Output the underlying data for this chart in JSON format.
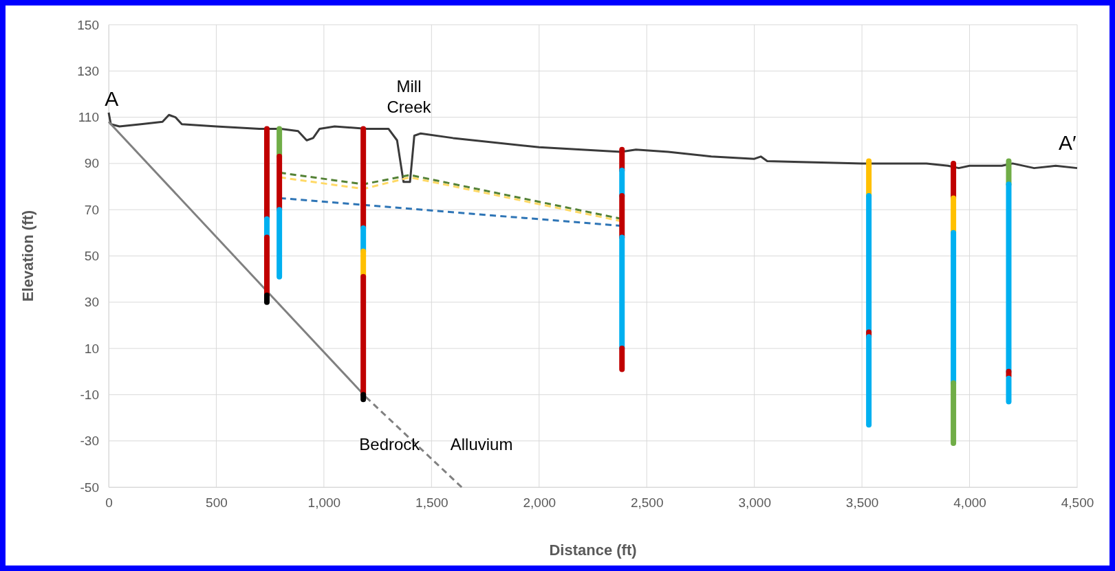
{
  "chart_data": {
    "type": "line",
    "xlabel": "Distance (ft)",
    "ylabel": "Elevation (ft)",
    "xlim": [
      0,
      4500
    ],
    "xticks": [
      {
        "value": 0,
        "label": "0"
      },
      {
        "value": 500,
        "label": "500"
      },
      {
        "value": 1000,
        "label": "1,000"
      },
      {
        "value": 1500,
        "label": "1,500"
      },
      {
        "value": 2000,
        "label": "2,000"
      },
      {
        "value": 2500,
        "label": "2,500"
      },
      {
        "value": 3000,
        "label": "3,000"
      },
      {
        "value": 3500,
        "label": "3,500"
      },
      {
        "value": 4000,
        "label": "4,000"
      },
      {
        "value": 4500,
        "label": "4,500"
      }
    ],
    "ylim": [
      -50,
      150
    ],
    "yticks": [
      -50,
      -30,
      -10,
      10,
      30,
      50,
      70,
      90,
      110,
      130,
      150
    ],
    "grid": true,
    "marker": "none",
    "series": [
      {
        "color": "#3a3a3a",
        "line_style": "solid",
        "x": [
          0,
          10,
          50,
          150,
          250,
          280,
          310,
          340,
          500,
          700,
          800,
          880,
          920,
          950,
          980,
          1050,
          1200,
          1300,
          1340,
          1370,
          1400,
          1420,
          1450,
          1600,
          2000,
          2380,
          2450,
          2600,
          2800,
          3000,
          3030,
          3060,
          3500,
          3800,
          3900,
          3950,
          4000,
          4150,
          4200,
          4300,
          4400,
          4500
        ],
        "values": [
          112,
          107,
          106,
          107,
          108,
          111,
          110,
          107,
          106,
          105,
          105,
          104,
          100,
          101,
          105,
          106,
          105,
          105,
          100,
          82,
          82,
          102,
          103,
          101,
          97,
          95,
          96,
          95,
          93,
          92,
          93,
          91,
          90,
          90,
          89,
          88,
          89,
          89,
          90,
          88,
          89,
          88
        ]
      },
      {
        "color": "#808080",
        "line_style": "solid",
        "x": [
          0,
          1195
        ],
        "values": [
          108,
          -11
        ]
      },
      {
        "color": "#808080",
        "line_style": "dashed",
        "x": [
          1195,
          1640
        ],
        "values": [
          -11,
          -50
        ]
      },
      {
        "color": "#548235",
        "line_style": "dashed",
        "x": [
          795,
          1183,
          1400,
          2385
        ],
        "values": [
          86,
          81,
          85,
          66
        ]
      },
      {
        "color": "#ffd966",
        "line_style": "dashed",
        "x": [
          795,
          1183,
          1400,
          2385
        ],
        "values": [
          84,
          79,
          84,
          65
        ]
      },
      {
        "color": "#2e75b6",
        "line_style": "dashed",
        "x": [
          795,
          2385
        ],
        "values": [
          75,
          63
        ]
      },
      {
        "color": "#c00000",
        "line_style": "solid",
        "x": [
          735,
          735
        ],
        "values": [
          105,
          66
        ]
      },
      {
        "color": "#00b0f0",
        "line_style": "solid",
        "x": [
          735,
          735
        ],
        "values": [
          66,
          58
        ]
      },
      {
        "color": "#c00000",
        "line_style": "solid",
        "x": [
          735,
          735
        ],
        "values": [
          58,
          33
        ]
      },
      {
        "color": "#000000",
        "line_style": "solid",
        "x": [
          735,
          735
        ],
        "values": [
          33,
          30
        ]
      },
      {
        "color": "#70ad47",
        "line_style": "solid",
        "x": [
          793,
          793
        ],
        "values": [
          105,
          93
        ]
      },
      {
        "color": "#c00000",
        "line_style": "solid",
        "x": [
          793,
          793
        ],
        "values": [
          93,
          70
        ]
      },
      {
        "color": "#00b0f0",
        "line_style": "solid",
        "x": [
          793,
          793
        ],
        "values": [
          70,
          41
        ]
      },
      {
        "color": "#c00000",
        "line_style": "solid",
        "x": [
          1183,
          1183
        ],
        "values": [
          105,
          62
        ]
      },
      {
        "color": "#00b0f0",
        "line_style": "solid",
        "x": [
          1183,
          1183
        ],
        "values": [
          62,
          52
        ]
      },
      {
        "color": "#ffc000",
        "line_style": "solid",
        "x": [
          1183,
          1183
        ],
        "values": [
          52,
          41
        ]
      },
      {
        "color": "#c00000",
        "line_style": "solid",
        "x": [
          1183,
          1183
        ],
        "values": [
          41,
          -10
        ]
      },
      {
        "color": "#000000",
        "line_style": "solid",
        "x": [
          1183,
          1183
        ],
        "values": [
          -10,
          -12
        ]
      },
      {
        "color": "#c00000",
        "line_style": "solid",
        "x": [
          2385,
          2385
        ],
        "values": [
          96,
          87
        ]
      },
      {
        "color": "#00b0f0",
        "line_style": "solid",
        "x": [
          2385,
          2385
        ],
        "values": [
          87,
          76
        ]
      },
      {
        "color": "#c00000",
        "line_style": "solid",
        "x": [
          2385,
          2385
        ],
        "values": [
          76,
          58
        ]
      },
      {
        "color": "#00b0f0",
        "line_style": "solid",
        "x": [
          2385,
          2385
        ],
        "values": [
          58,
          10
        ]
      },
      {
        "color": "#c00000",
        "line_style": "solid",
        "x": [
          2385,
          2385
        ],
        "values": [
          10,
          1
        ]
      },
      {
        "color": "#ffc000",
        "line_style": "solid",
        "x": [
          3532,
          3532
        ],
        "values": [
          91,
          76
        ]
      },
      {
        "color": "#00b0f0",
        "line_style": "solid",
        "x": [
          3532,
          3532
        ],
        "values": [
          76,
          17
        ]
      },
      {
        "color": "#c00000",
        "line_style": "solid",
        "x": [
          3532,
          3532
        ],
        "values": [
          17,
          15
        ]
      },
      {
        "color": "#00b0f0",
        "line_style": "solid",
        "x": [
          3532,
          3532
        ],
        "values": [
          15,
          -23
        ]
      },
      {
        "color": "#c00000",
        "line_style": "solid",
        "x": [
          3925,
          3925
        ],
        "values": [
          90,
          75
        ]
      },
      {
        "color": "#ffc000",
        "line_style": "solid",
        "x": [
          3925,
          3925
        ],
        "values": [
          75,
          60
        ]
      },
      {
        "color": "#00b0f0",
        "line_style": "solid",
        "x": [
          3925,
          3925
        ],
        "values": [
          60,
          -5
        ]
      },
      {
        "color": "#70ad47",
        "line_style": "solid",
        "x": [
          3925,
          3925
        ],
        "values": [
          -5,
          -31
        ]
      },
      {
        "color": "#70ad47",
        "line_style": "solid",
        "x": [
          4182,
          4182
        ],
        "values": [
          91,
          81
        ]
      },
      {
        "color": "#00b0f0",
        "line_style": "solid",
        "x": [
          4182,
          4182
        ],
        "values": [
          81,
          0
        ]
      },
      {
        "color": "#c00000",
        "line_style": "solid",
        "x": [
          4182,
          4182
        ],
        "values": [
          0,
          -2
        ]
      },
      {
        "color": "#00b0f0",
        "line_style": "solid",
        "x": [
          4182,
          4182
        ],
        "values": [
          -3,
          -13
        ]
      }
    ],
    "annotations": [
      "A",
      "A′",
      "Mill Creek",
      "Bedrock",
      "Alluvium"
    ]
  }
}
